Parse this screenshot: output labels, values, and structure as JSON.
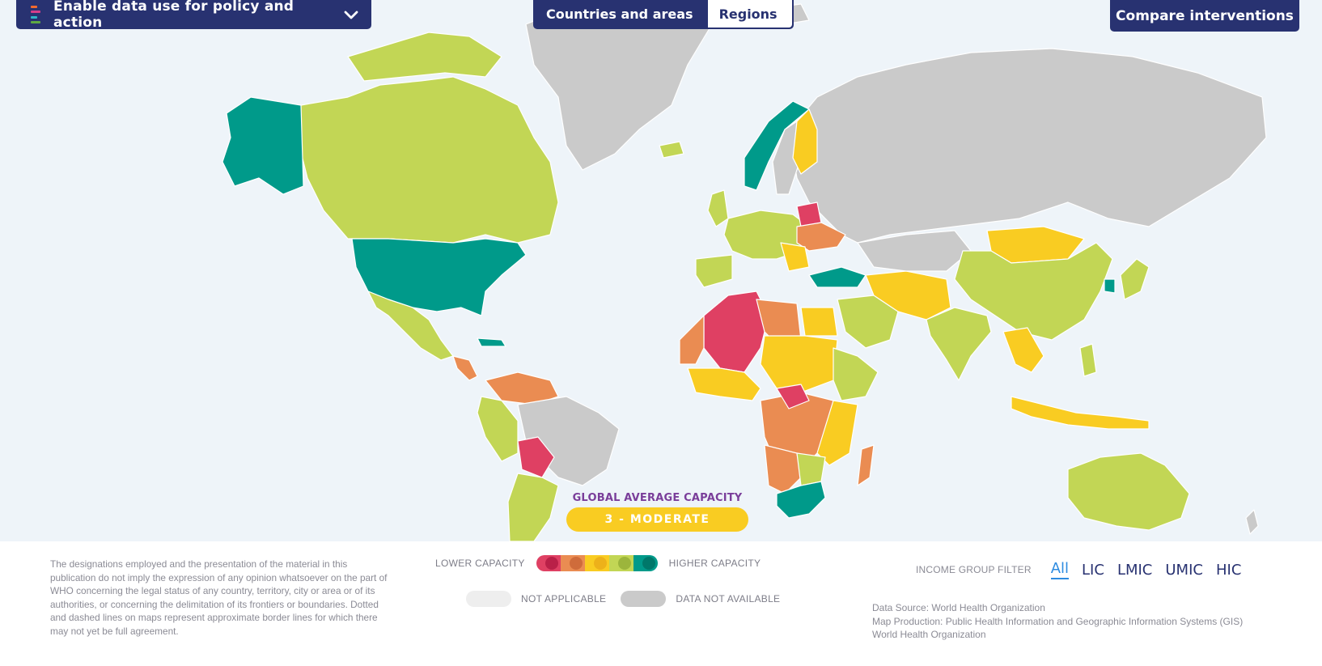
{
  "header": {
    "indicator_title": "Enable data use for policy and action",
    "view_toggle": [
      {
        "label": "Countries and areas",
        "active": true
      },
      {
        "label": "Regions",
        "active": false
      }
    ],
    "compare_label": "Compare interventions"
  },
  "map": {
    "global_average_label": "GLOBAL AVERAGE CAPACITY",
    "global_average_value": "3 - MODERATE",
    "scale_colors": {
      "1_very_low": "#df4063",
      "2_low": "#ea8c52",
      "3_moderate": "#f9cc22",
      "4_high": "#c2d655",
      "5_very_high": "#009a8a",
      "data_not_available": "#cacaca",
      "not_applicable": "#eeeeee",
      "ocean": "#eef4f9"
    }
  },
  "footer": {
    "disclaimer": "The designations employed and the presentation of the material in this publication do not imply the expression of any opinion whatsoever on the part of WHO concerning the legal status of any country, territory, city or area or of its authorities, or concerning the delimitation of its frontiers or boundaries. Dotted and dashed lines on maps represent approximate border lines for which there may not yet be full agreement.",
    "legend": {
      "lower_label": "LOWER CAPACITY",
      "higher_label": "HIGHER CAPACITY",
      "not_applicable_label": "NOT APPLICABLE",
      "data_not_available_label": "DATA NOT AVAILABLE"
    },
    "income_filter": {
      "label": "INCOME GROUP FILTER",
      "options": [
        "All",
        "LIC",
        "LMIC",
        "UMIC",
        "HIC"
      ],
      "selected": "All"
    },
    "source_lines": [
      "Data Source: World Health Organization",
      "Map Production: Public Health Information and Geographic Information Systems (GIS)",
      "World Health Organization"
    ]
  }
}
